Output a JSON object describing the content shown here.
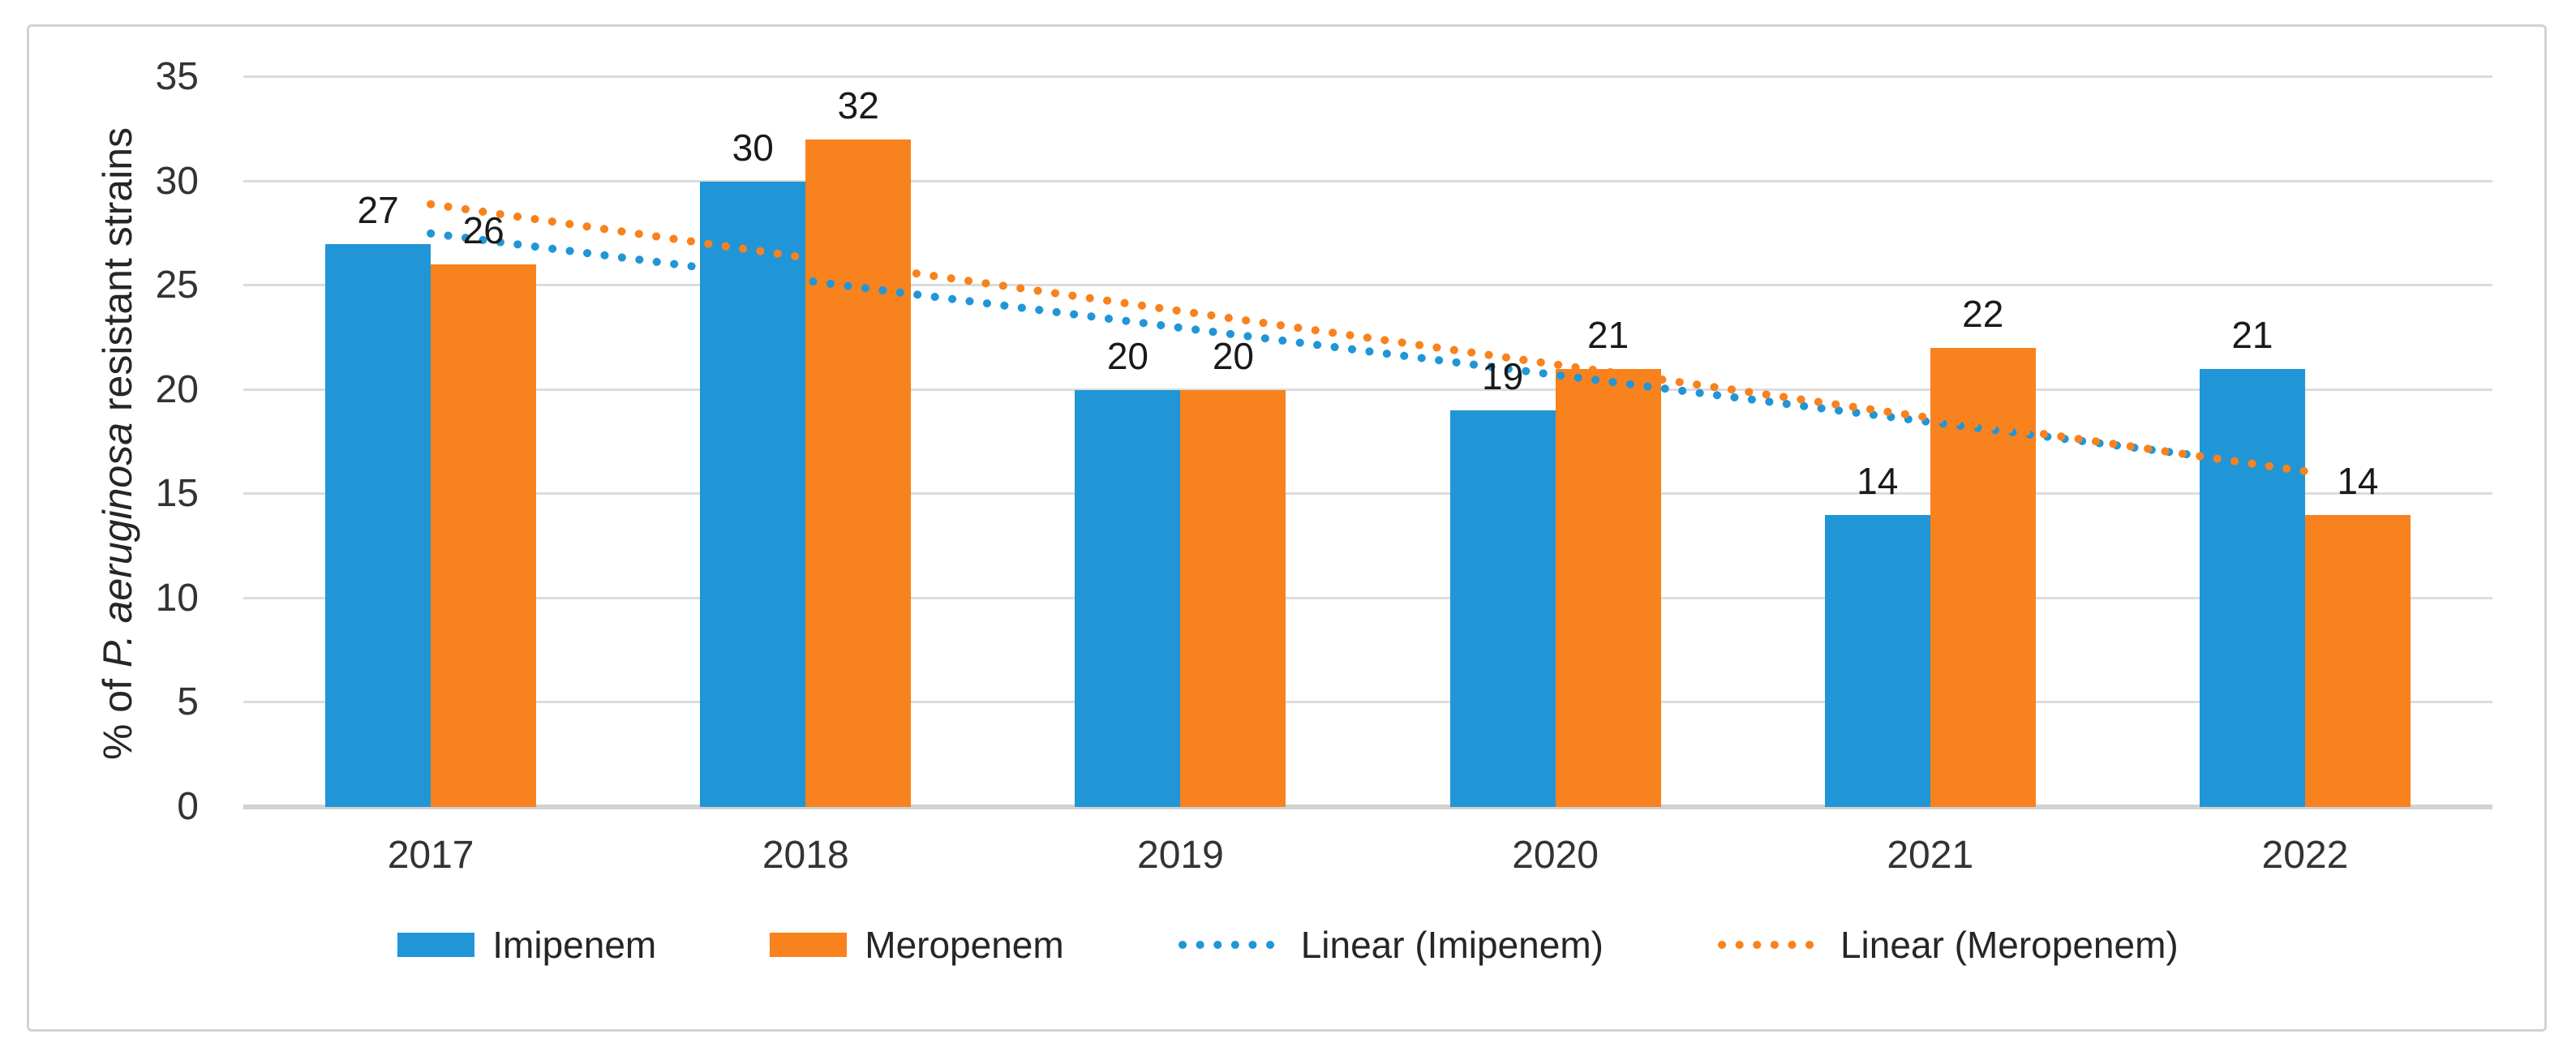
{
  "chart_data": {
    "type": "bar",
    "title": "",
    "ylabel_parts": {
      "prefix": "% of ",
      "italic": "P. aeruginosa",
      "suffix": " resistant strains"
    },
    "categories": [
      "2017",
      "2018",
      "2019",
      "2020",
      "2021",
      "2022"
    ],
    "series": [
      {
        "name": "Imipenem",
        "color": "#2196D6",
        "values": [
          27,
          30,
          20,
          19,
          14,
          21
        ]
      },
      {
        "name": "Meropenem",
        "color": "#F8821E",
        "values": [
          26,
          32,
          20,
          21,
          22,
          14
        ]
      }
    ],
    "trendlines": [
      {
        "name": "Linear (Imipenem)",
        "color": "#2196D6",
        "start_value": 27.5,
        "end_value": 16.2
      },
      {
        "name": "Linear (Meropenem)",
        "color": "#F8821E",
        "start_value": 28.9,
        "end_value": 16.1
      }
    ],
    "yticks": [
      0,
      5,
      10,
      15,
      20,
      25,
      30,
      35
    ],
    "ylim": [
      0,
      35
    ],
    "grid": "horizontal",
    "legend_position": "bottom",
    "bar_value_labels_shown": true
  },
  "colors": {
    "imipenem_blue": "#2196D6",
    "meropenem_orange": "#F8821E",
    "gridline": "#dcdcdc",
    "axis_baseline": "#d2d2d2",
    "frame_border": "#d2d2d2",
    "text": "#262626"
  }
}
